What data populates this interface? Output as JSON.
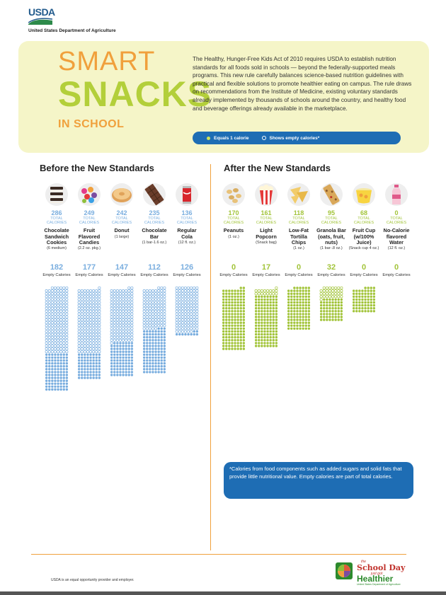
{
  "header": {
    "logo_text": "USDA",
    "agency_name": "United States Department of Agriculture"
  },
  "hero": {
    "title_line1": "SMART",
    "title_line2": "SNACKS",
    "title_line3": "IN SCHOOL",
    "intro": "The Healthy, Hunger-Free Kids Act of 2010 requires USDA to establish nutrition standards for all foods sold in schools — beyond the federally-supported meals programs. This new rule carefully balances science-based nutrition guidelines with practical and flexible solutions to promote healthier eating on campus. The rule draws on recommendations from the Institute of Medicine, existing voluntary standards already implemented by thousands of schools around the country, and healthy food and beverage offerings already available in the marketplace.",
    "legend_filled": "Equals 1 calorie",
    "legend_empty": "Shows empty calories*"
  },
  "before": {
    "heading": "Before the New Standards",
    "items": [
      {
        "name": "Chocolate Sandwich Cookies",
        "serving": "(6 medium)",
        "total": "286",
        "empty": "182",
        "icon": "cookies-icon"
      },
      {
        "name": "Fruit Flavored Candies",
        "serving": "(2.2 oz. pkg.)",
        "total": "249",
        "empty": "177",
        "icon": "candies-icon"
      },
      {
        "name": "Donut",
        "serving": "(1 large)",
        "total": "242",
        "empty": "147",
        "icon": "donut-icon"
      },
      {
        "name": "Chocolate Bar",
        "serving": "(1 bar-1.6 oz.)",
        "total": "235",
        "empty": "112",
        "icon": "chocolate-bar-icon"
      },
      {
        "name": "Regular Cola",
        "serving": "(12 fl. oz.)",
        "total": "136",
        "empty": "126",
        "icon": "cola-can-icon"
      }
    ]
  },
  "after": {
    "heading": "After the New Standards",
    "items": [
      {
        "name": "Peanuts",
        "serving": "(1 oz.)",
        "total": "170",
        "empty": "0",
        "icon": "peanuts-icon"
      },
      {
        "name": "Light Popcorn",
        "serving": "(Snack bag)",
        "total": "161",
        "empty": "17",
        "icon": "popcorn-icon"
      },
      {
        "name": "Low-Fat Tortilla Chips",
        "serving": "(1 oz.)",
        "total": "118",
        "empty": "0",
        "icon": "tortilla-chips-icon"
      },
      {
        "name": "Granola Bar (oats, fruit, nuts)",
        "serving": "(1 bar-.8 oz.)",
        "total": "95",
        "empty": "32",
        "icon": "granola-bar-icon"
      },
      {
        "name": "Fruit Cup (w/100% Juice)",
        "serving": "(Snack cup 4 oz.)",
        "total": "68",
        "empty": "0",
        "icon": "fruit-cup-icon"
      },
      {
        "name": "No-Calorie flavored Water",
        "serving": "(12 fl. oz.)",
        "total": "0",
        "empty": "0",
        "icon": "water-bottle-icon"
      }
    ]
  },
  "labels": {
    "total_calories": "TOTAL CALORIES",
    "empty_calories": "Empty Calories"
  },
  "footnote": "*Calories from food components such as added sugars and solid fats that provide little nutritional value. Empty calories are part of total calories.",
  "footer": {
    "eop": "USDA is an equal opportunity provider and employer.",
    "logo_the": "the",
    "logo_school_day": "School Day",
    "logo_just_got": "just got",
    "logo_healthier": "Healthier",
    "logo_sub": "United States Department of Agriculture"
  },
  "colors": {
    "orange": "#f0a03c",
    "green": "#a2c43a",
    "blue_dot": "#7aaedf",
    "legend_blue": "#1e6db4",
    "hero_bg": "#f5f5c8"
  }
}
